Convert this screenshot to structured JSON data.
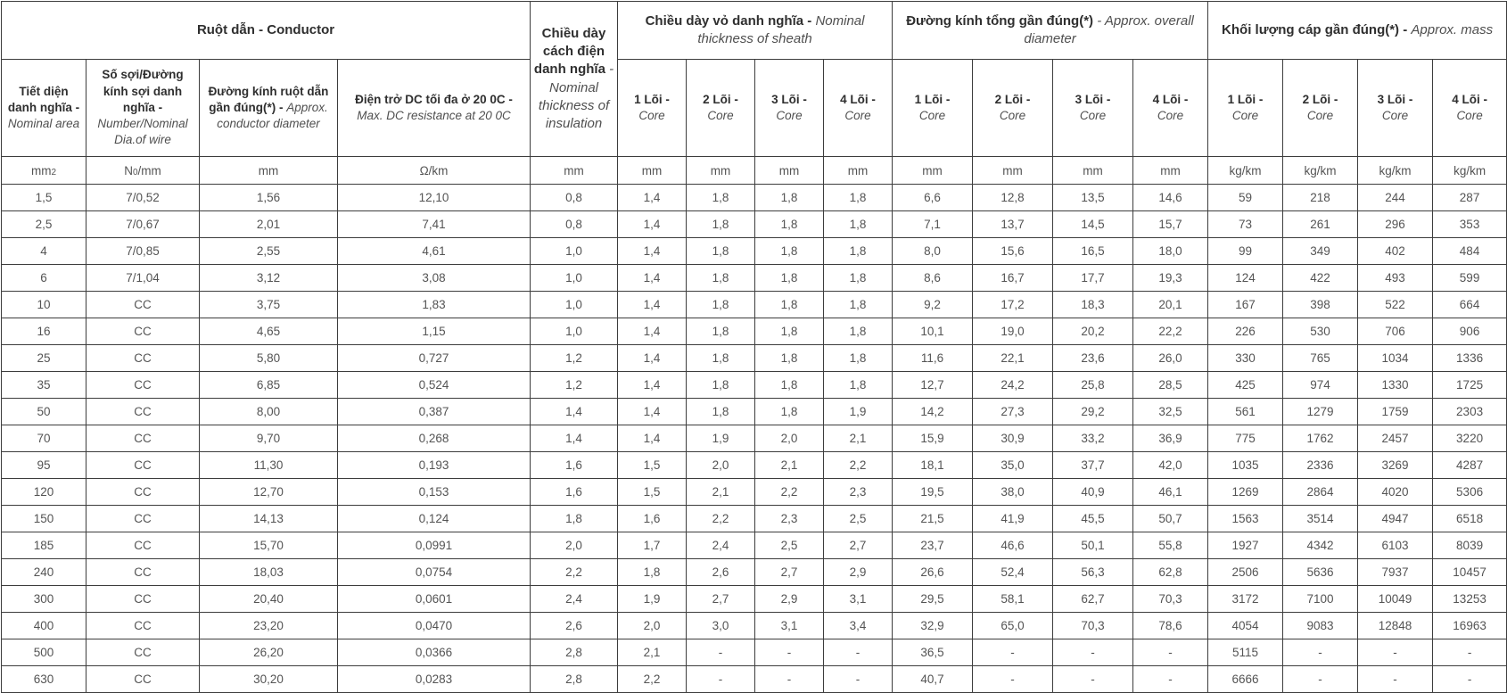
{
  "table": {
    "groups": {
      "conductor": {
        "label": "Ruột dẫn - Conductor"
      },
      "insulation": {
        "vi": "Chiều dày cách điện danh nghĩa",
        "en": "- Nominal thickness of insulation"
      },
      "sheath": {
        "vi": "Chiều dày vỏ danh nghĩa -",
        "en": "Nominal thickness of sheath"
      },
      "overall": {
        "vi": "Đường kính tổng gần đúng(*)",
        "en": "- Approx. overall diameter"
      },
      "mass": {
        "vi": "Khối lượng cáp gần đúng(*) -",
        "en": "Approx. mass"
      }
    },
    "conductor_columns": [
      {
        "vi": "Tiết diện danh nghĩa -",
        "en": "Nominal area"
      },
      {
        "vi": "Số sợi/Đường kính sợi danh nghĩa -",
        "en": "Number/Nominal Dia.of wire"
      },
      {
        "vi": "Đường kính ruột dẫn gần đúng(*) -",
        "en": "Approx. conductor diameter"
      },
      {
        "vi": "Điện trở DC tối đa ở 20 0C -",
        "en": "Max. DC resistance at 20 0C"
      }
    ],
    "core_columns": [
      {
        "group": "sheath",
        "n": "1",
        "vi": "1 Lõi -",
        "en": "Core"
      },
      {
        "group": "sheath",
        "n": "2",
        "vi": "2 Lõi -",
        "en": "Core"
      },
      {
        "group": "sheath",
        "n": "3",
        "vi": "3 Lõi -",
        "en": "Core"
      },
      {
        "group": "sheath",
        "n": "4",
        "vi": "4 Lõi -",
        "en": "Core"
      },
      {
        "group": "overall",
        "n": "1",
        "vi": "1 Lõi -",
        "en": "Core"
      },
      {
        "group": "overall",
        "n": "2",
        "vi": "2 Lõi -",
        "en": "Core"
      },
      {
        "group": "overall",
        "n": "3",
        "vi": "3 Lõi -",
        "en": "Core"
      },
      {
        "group": "overall",
        "n": "4",
        "vi": "4 Lõi -",
        "en": "Core"
      },
      {
        "group": "mass",
        "n": "1",
        "vi": "1 Lõi -",
        "en": "Core"
      },
      {
        "group": "mass",
        "n": "2",
        "vi": "2 Lõi -",
        "en": "Core"
      },
      {
        "group": "mass",
        "n": "3",
        "vi": "3 Lõi -",
        "en": "Core"
      },
      {
        "group": "mass",
        "n": "4",
        "vi": "4 Lõi -",
        "en": "Core"
      }
    ],
    "units": [
      {
        "parts": [
          {
            "t": "mm"
          },
          {
            "t": "2",
            "sub": true
          }
        ]
      },
      {
        "parts": [
          {
            "t": "N"
          },
          {
            "t": "0",
            "sub": true
          },
          {
            "t": "/mm"
          }
        ]
      },
      {
        "parts": [
          {
            "t": "mm"
          }
        ]
      },
      {
        "parts": [
          {
            "t": "Ω/km"
          }
        ]
      },
      {
        "parts": [
          {
            "t": "mm"
          }
        ]
      },
      {
        "parts": [
          {
            "t": "mm"
          }
        ]
      },
      {
        "parts": [
          {
            "t": "mm"
          }
        ]
      },
      {
        "parts": [
          {
            "t": "mm"
          }
        ]
      },
      {
        "parts": [
          {
            "t": "mm"
          }
        ]
      },
      {
        "parts": [
          {
            "t": "mm"
          }
        ]
      },
      {
        "parts": [
          {
            "t": "mm"
          }
        ]
      },
      {
        "parts": [
          {
            "t": "mm"
          }
        ]
      },
      {
        "parts": [
          {
            "t": "mm"
          }
        ]
      },
      {
        "parts": [
          {
            "t": "kg/km"
          }
        ]
      },
      {
        "parts": [
          {
            "t": "kg/km"
          }
        ]
      },
      {
        "parts": [
          {
            "t": "kg/km"
          }
        ]
      },
      {
        "parts": [
          {
            "t": "kg/km"
          }
        ]
      }
    ],
    "rows": [
      [
        "1,5",
        "7/0,52",
        "1,56",
        "12,10",
        "0,8",
        "1,4",
        "1,8",
        "1,8",
        "1,8",
        "6,6",
        "12,8",
        "13,5",
        "14,6",
        "59",
        "218",
        "244",
        "287"
      ],
      [
        "2,5",
        "7/0,67",
        "2,01",
        "7,41",
        "0,8",
        "1,4",
        "1,8",
        "1,8",
        "1,8",
        "7,1",
        "13,7",
        "14,5",
        "15,7",
        "73",
        "261",
        "296",
        "353"
      ],
      [
        "4",
        "7/0,85",
        "2,55",
        "4,61",
        "1,0",
        "1,4",
        "1,8",
        "1,8",
        "1,8",
        "8,0",
        "15,6",
        "16,5",
        "18,0",
        "99",
        "349",
        "402",
        "484"
      ],
      [
        "6",
        "7/1,04",
        "3,12",
        "3,08",
        "1,0",
        "1,4",
        "1,8",
        "1,8",
        "1,8",
        "8,6",
        "16,7",
        "17,7",
        "19,3",
        "124",
        "422",
        "493",
        "599"
      ],
      [
        "10",
        "CC",
        "3,75",
        "1,83",
        "1,0",
        "1,4",
        "1,8",
        "1,8",
        "1,8",
        "9,2",
        "17,2",
        "18,3",
        "20,1",
        "167",
        "398",
        "522",
        "664"
      ],
      [
        "16",
        "CC",
        "4,65",
        "1,15",
        "1,0",
        "1,4",
        "1,8",
        "1,8",
        "1,8",
        "10,1",
        "19,0",
        "20,2",
        "22,2",
        "226",
        "530",
        "706",
        "906"
      ],
      [
        "25",
        "CC",
        "5,80",
        "0,727",
        "1,2",
        "1,4",
        "1,8",
        "1,8",
        "1,8",
        "11,6",
        "22,1",
        "23,6",
        "26,0",
        "330",
        "765",
        "1034",
        "1336"
      ],
      [
        "35",
        "CC",
        "6,85",
        "0,524",
        "1,2",
        "1,4",
        "1,8",
        "1,8",
        "1,8",
        "12,7",
        "24,2",
        "25,8",
        "28,5",
        "425",
        "974",
        "1330",
        "1725"
      ],
      [
        "50",
        "CC",
        "8,00",
        "0,387",
        "1,4",
        "1,4",
        "1,8",
        "1,8",
        "1,9",
        "14,2",
        "27,3",
        "29,2",
        "32,5",
        "561",
        "1279",
        "1759",
        "2303"
      ],
      [
        "70",
        "CC",
        "9,70",
        "0,268",
        "1,4",
        "1,4",
        "1,9",
        "2,0",
        "2,1",
        "15,9",
        "30,9",
        "33,2",
        "36,9",
        "775",
        "1762",
        "2457",
        "3220"
      ],
      [
        "95",
        "CC",
        "11,30",
        "0,193",
        "1,6",
        "1,5",
        "2,0",
        "2,1",
        "2,2",
        "18,1",
        "35,0",
        "37,7",
        "42,0",
        "1035",
        "2336",
        "3269",
        "4287"
      ],
      [
        "120",
        "CC",
        "12,70",
        "0,153",
        "1,6",
        "1,5",
        "2,1",
        "2,2",
        "2,3",
        "19,5",
        "38,0",
        "40,9",
        "46,1",
        "1269",
        "2864",
        "4020",
        "5306"
      ],
      [
        "150",
        "CC",
        "14,13",
        "0,124",
        "1,8",
        "1,6",
        "2,2",
        "2,3",
        "2,5",
        "21,5",
        "41,9",
        "45,5",
        "50,7",
        "1563",
        "3514",
        "4947",
        "6518"
      ],
      [
        "185",
        "CC",
        "15,70",
        "0,0991",
        "2,0",
        "1,7",
        "2,4",
        "2,5",
        "2,7",
        "23,7",
        "46,6",
        "50,1",
        "55,8",
        "1927",
        "4342",
        "6103",
        "8039"
      ],
      [
        "240",
        "CC",
        "18,03",
        "0,0754",
        "2,2",
        "1,8",
        "2,6",
        "2,7",
        "2,9",
        "26,6",
        "52,4",
        "56,3",
        "62,8",
        "2506",
        "5636",
        "7937",
        "10457"
      ],
      [
        "300",
        "CC",
        "20,40",
        "0,0601",
        "2,4",
        "1,9",
        "2,7",
        "2,9",
        "3,1",
        "29,5",
        "58,1",
        "62,7",
        "70,3",
        "3172",
        "7100",
        "10049",
        "13253"
      ],
      [
        "400",
        "CC",
        "23,20",
        "0,0470",
        "2,6",
        "2,0",
        "3,0",
        "3,1",
        "3,4",
        "32,9",
        "65,0",
        "70,3",
        "78,6",
        "4054",
        "9083",
        "12848",
        "16963"
      ],
      [
        "500",
        "CC",
        "26,20",
        "0,0366",
        "2,8",
        "2,1",
        "-",
        "-",
        "-",
        "36,5",
        "-",
        "-",
        "-",
        "5115",
        "-",
        "-",
        "-"
      ],
      [
        "630",
        "CC",
        "30,20",
        "0,0283",
        "2,8",
        "2,2",
        "-",
        "-",
        "-",
        "40,7",
        "-",
        "-",
        "-",
        "6666",
        "-",
        "-",
        "-"
      ]
    ]
  }
}
